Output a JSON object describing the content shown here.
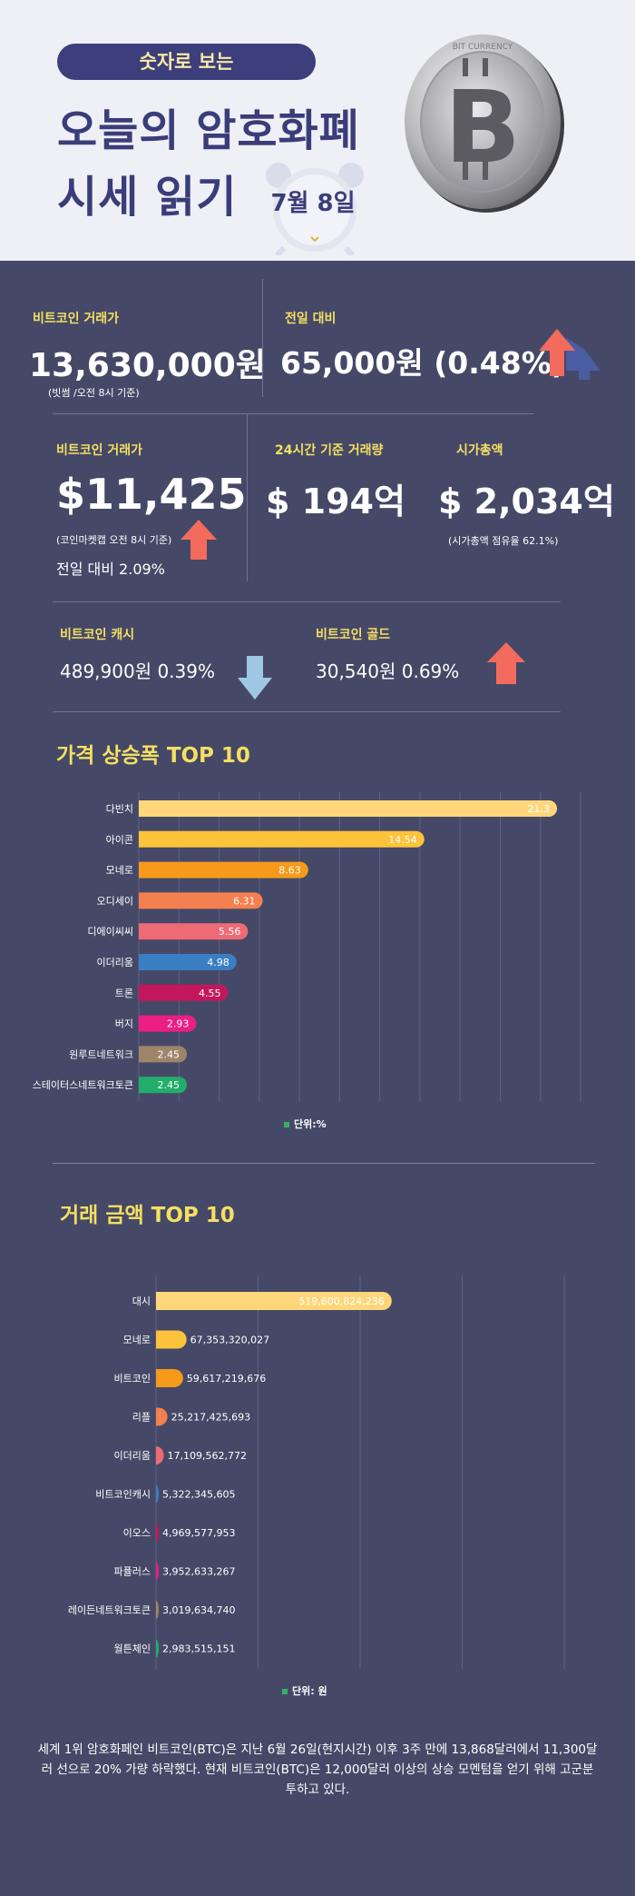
{
  "header": {
    "tag": "숫자로 보는",
    "title_line1": "오늘의 암호화폐",
    "title_line2": "시세 읽기",
    "date": "7월 8일",
    "coin_ring_text": "BIT CURRENCY"
  },
  "btc_krw": {
    "label": "비트코인 거래가",
    "price": "13,630,000원",
    "note": "(빗썸 /오전 8시 기준)"
  },
  "btc_change": {
    "label": "전일 대비",
    "value": "65,000원 (0.48%)"
  },
  "btc_usd": {
    "label": "비트코인 거래가",
    "price": "$11,425",
    "note": "(코인마켓캡 오전 8시 기준)",
    "change": "전일 대비 2.09%"
  },
  "volume": {
    "label": "24시간 기준 거래량",
    "value": "$ 194억"
  },
  "market_cap": {
    "label": "시가총액",
    "value": "$ 2,034억",
    "note": "(시가총액 점유율 62.1%)"
  },
  "bch": {
    "label": "비트코인 캐시",
    "value": "489,900원  0.39%"
  },
  "btg": {
    "label": "비트코인 골드",
    "value": "30,540원  0.69%"
  },
  "colors": {
    "background": "#454967",
    "accent_yellow": "#f6df62",
    "up_arrow": "#f36b5d",
    "down_arrow": "#9ec7e3"
  },
  "chart_data": [
    {
      "type": "bar",
      "orientation": "horizontal",
      "title": "가격 상승폭 TOP 10",
      "unit_label": "단위:%",
      "categories": [
        "다빈치",
        "아이콘",
        "모네로",
        "오디세이",
        "디에이씨씨",
        "이더리움",
        "트론",
        "버지",
        "원루트네트워크",
        "스테이터스네트워크토큰"
      ],
      "values": [
        21.3,
        14.54,
        8.63,
        6.31,
        5.56,
        4.98,
        4.55,
        2.93,
        2.45,
        2.45
      ],
      "labels": [
        "21.3",
        "14.54",
        "8.63",
        "6.31",
        "5.56",
        "4.98",
        "4.55",
        "2.93",
        "2.45",
        "2.45"
      ],
      "colors": [
        "#ffd77a",
        "#fdc33a",
        "#f59a1b",
        "#f47f4f",
        "#ee6b75",
        "#3a7fc3",
        "#c2185b",
        "#ec1e84",
        "#9e8468",
        "#22ad6a"
      ],
      "xlim": [
        0,
        22.5
      ],
      "grid": true
    },
    {
      "type": "bar",
      "orientation": "horizontal",
      "title": "거래 금액 TOP 10",
      "unit_label": "단위: 원",
      "categories": [
        "대시",
        "모네로",
        "비트코인",
        "리플",
        "이더리움",
        "비트코인캐시",
        "이오스",
        "파퓰러스",
        "레이든네트워크토큰",
        "월튼체인"
      ],
      "values": [
        519600824236,
        67353320027,
        59617219676,
        25217425693,
        17109562772,
        5322345605,
        4969577953,
        3952633267,
        3019634740,
        2983515151
      ],
      "labels": [
        "519,600,824,236",
        "67,353,320,027",
        "59,617,219,676",
        "25,217,425,693",
        "17,109,562,772",
        "5,322,345,605",
        "4,969,577,953",
        "3,952,633,267",
        "3,019,634,740",
        "2,983,515,151"
      ],
      "colors": [
        "#ffd77a",
        "#fdc33a",
        "#f59a1b",
        "#f47f4f",
        "#ee6b75",
        "#3a7fc3",
        "#c2185b",
        "#ec1e84",
        "#9e8468",
        "#22ad6a"
      ],
      "xlim": [
        0,
        900000000000
      ],
      "grid": true
    }
  ],
  "footer_text": "세계 1위 암호화페인 비트코인(BTC)은 지난 6월 26일(현지시간) 이후 3주 만에 13,868달러에서 11,300달러 선으로 20% 가량 하락했다. 현재 비트코인(BTC)은 12,000달러 이상의 상승 모멘텀을 얻기 위해 고군분투하고 있다."
}
